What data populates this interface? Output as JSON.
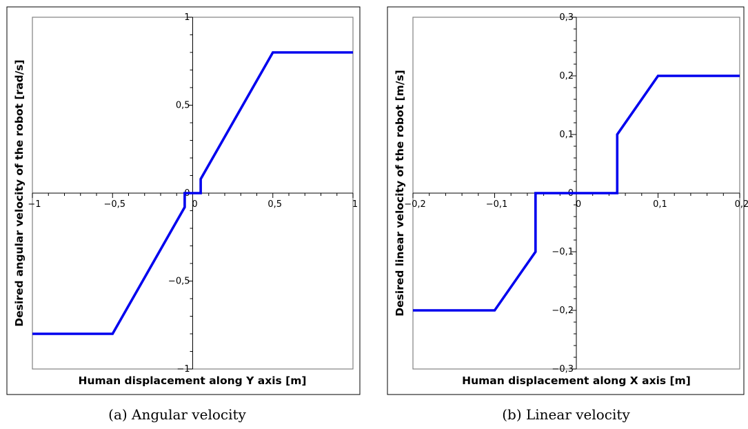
{
  "chart_data": [
    {
      "type": "line",
      "xlabel": "Human displacement along Y axis [m]",
      "ylabel": "Desired angular velocity of the robot [rad/s]",
      "caption": "(a)  Angular velocity",
      "xlim": [
        -1,
        1
      ],
      "ylim": [
        -1,
        1
      ],
      "grid": false,
      "xticks": [
        {
          "v": -1,
          "label": "−1"
        },
        {
          "v": -0.5,
          "label": "−0,5"
        },
        {
          "v": 0,
          "label": "0"
        },
        {
          "v": 0.5,
          "label": "0,5"
        },
        {
          "v": 1,
          "label": "1"
        }
      ],
      "yticks": [
        {
          "v": 1,
          "label": "1"
        },
        {
          "v": 0.5,
          "label": "0,5"
        },
        {
          "v": 0,
          "label": "0"
        },
        {
          "v": -0.5,
          "label": "−0,5"
        },
        {
          "v": -1,
          "label": "−1"
        }
      ],
      "series": [
        {
          "color": "#0000ee",
          "x": [
            -1,
            -0.5,
            -0.05,
            -0.05,
            0.05,
            0.05,
            0.5,
            1
          ],
          "y": [
            -0.8,
            -0.8,
            -0.08,
            0,
            0,
            0.08,
            0.8,
            0.8
          ]
        }
      ]
    },
    {
      "type": "line",
      "xlabel": "Human displacement along X axis  [m]",
      "ylabel": "Desired linear velocity of the robot [m/s]",
      "caption": "(b)  Linear velocity",
      "xlim": [
        -0.2,
        0.2
      ],
      "ylim": [
        -0.3,
        0.3
      ],
      "grid": false,
      "xticks": [
        {
          "v": -0.2,
          "label": "−0,2"
        },
        {
          "v": -0.1,
          "label": "−0,1"
        },
        {
          "v": 0,
          "label": "0"
        },
        {
          "v": 0.1,
          "label": "0,1"
        },
        {
          "v": 0.2,
          "label": "0,2"
        }
      ],
      "yticks": [
        {
          "v": 0.3,
          "label": "0,3"
        },
        {
          "v": 0.2,
          "label": "0,2"
        },
        {
          "v": 0.1,
          "label": "0,1"
        },
        {
          "v": 0,
          "label": "0"
        },
        {
          "v": -0.1,
          "label": "−0,1"
        },
        {
          "v": -0.2,
          "label": "−0,2"
        },
        {
          "v": -0.3,
          "label": "−0,3"
        }
      ],
      "series": [
        {
          "color": "#0000ee",
          "x": [
            -0.2,
            -0.1,
            -0.05,
            -0.05,
            0.05,
            0.05,
            0.1,
            0.2
          ],
          "y": [
            -0.2,
            -0.2,
            -0.1,
            0,
            0,
            0.1,
            0.2,
            0.2
          ]
        }
      ]
    }
  ]
}
